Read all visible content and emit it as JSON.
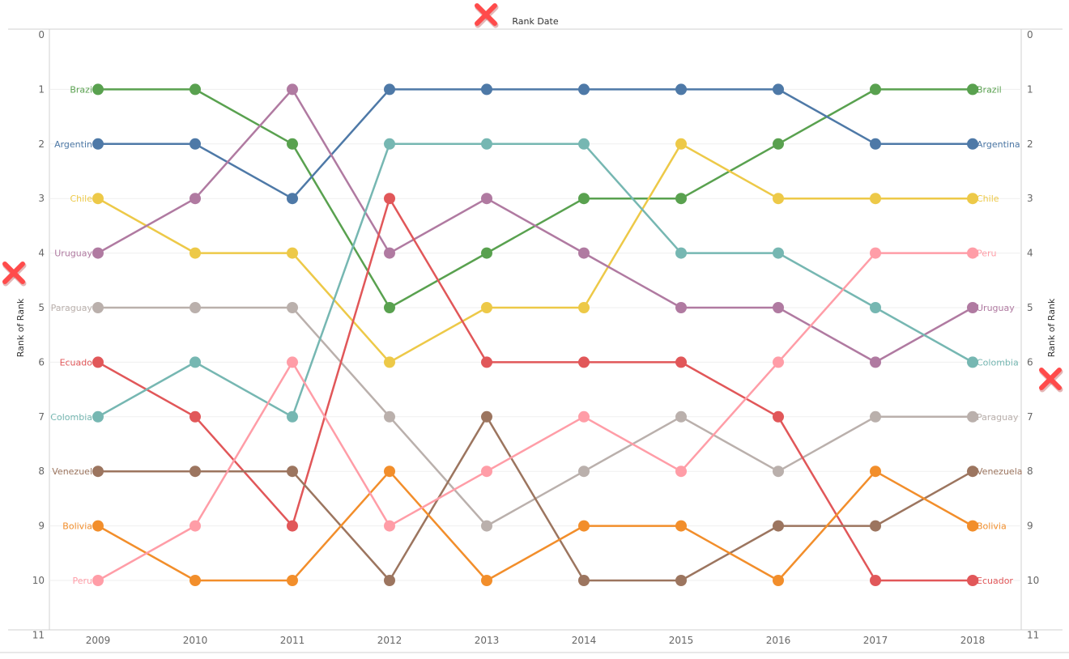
{
  "chart_data": {
    "type": "line",
    "title": "",
    "xlabel": "Rank Date",
    "ylabel_left": "Rank of Rank",
    "ylabel_right": "Rank of Rank",
    "x": [
      "2009",
      "2010",
      "2011",
      "2012",
      "2013",
      "2014",
      "2015",
      "2016",
      "2017",
      "2018"
    ],
    "ylim": [
      0,
      11
    ],
    "y_reversed": true,
    "y_ticks": [
      "0",
      "1",
      "2",
      "3",
      "4",
      "5",
      "6",
      "7",
      "8",
      "9",
      "10",
      "11"
    ],
    "grid": true,
    "series": [
      {
        "name": "Brazil",
        "color": "#59a14f",
        "values": [
          1,
          1,
          2,
          5,
          4,
          3,
          3,
          2,
          1,
          1
        ]
      },
      {
        "name": "Argentina",
        "color": "#4e79a7",
        "values": [
          2,
          2,
          3,
          1,
          1,
          1,
          1,
          1,
          2,
          2
        ]
      },
      {
        "name": "Chile",
        "color": "#edc948",
        "values": [
          3,
          4,
          4,
          6,
          5,
          5,
          2,
          3,
          3,
          3
        ]
      },
      {
        "name": "Uruguay",
        "color": "#b07aa1",
        "values": [
          4,
          3,
          1,
          4,
          3,
          4,
          5,
          5,
          6,
          5
        ]
      },
      {
        "name": "Paraguay",
        "color": "#bab0ac",
        "values": [
          5,
          5,
          5,
          7,
          9,
          8,
          7,
          8,
          7,
          7
        ]
      },
      {
        "name": "Ecuador",
        "color": "#e15759",
        "values": [
          6,
          7,
          9,
          3,
          6,
          6,
          6,
          7,
          10,
          10
        ]
      },
      {
        "name": "Colombia",
        "color": "#76b7b2",
        "values": [
          7,
          6,
          7,
          2,
          2,
          2,
          4,
          4,
          5,
          6
        ]
      },
      {
        "name": "Venezuela",
        "color": "#9c755f",
        "values": [
          8,
          8,
          8,
          10,
          7,
          10,
          10,
          9,
          9,
          8
        ]
      },
      {
        "name": "Bolivia",
        "color": "#f28e2b",
        "values": [
          9,
          10,
          10,
          8,
          10,
          9,
          9,
          10,
          8,
          9
        ]
      },
      {
        "name": "Peru",
        "color": "#ff9da7",
        "values": [
          10,
          9,
          6,
          9,
          8,
          7,
          8,
          6,
          4,
          4
        ]
      }
    ],
    "left_labels": [
      "Brazi",
      "Argentin",
      "Chile",
      "Uruguay",
      "Paraguay",
      "Ecuado",
      "Colombia",
      "Venezuel",
      "Bolivia",
      "Peru"
    ],
    "right_labels": [
      "Brazil",
      "Argentina",
      "Chile",
      "Uruguay",
      "Paraguay",
      "Ecuador",
      "Colombia",
      "Venezuela",
      "Bolivia",
      "Peru"
    ],
    "marker_color": "#ff4b4b"
  }
}
